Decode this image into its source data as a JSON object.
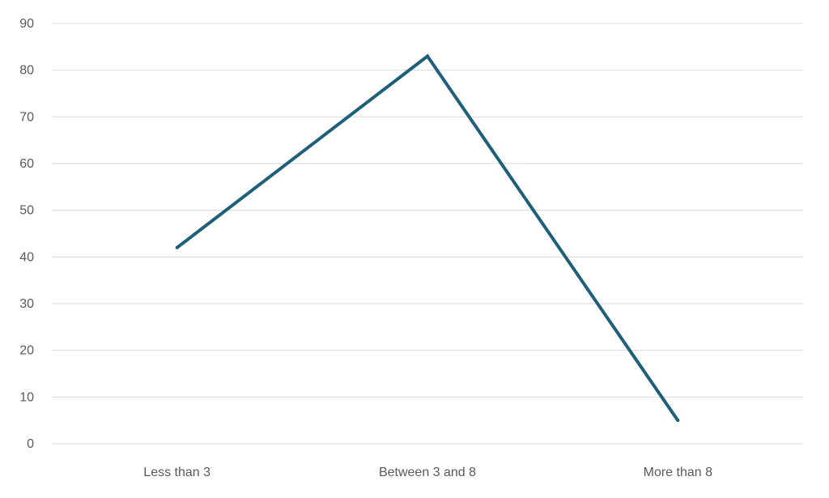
{
  "chart_data": {
    "type": "line",
    "title": "",
    "xlabel": "",
    "ylabel": "",
    "categories": [
      "Less than 3",
      "Between 3 and 8",
      "More than 8"
    ],
    "series": [
      {
        "values": [
          42,
          83,
          5
        ],
        "color": "#1f5f7a"
      }
    ],
    "ylim": [
      0,
      90
    ],
    "ytick_step": 10,
    "grid": true,
    "legend": "none"
  }
}
